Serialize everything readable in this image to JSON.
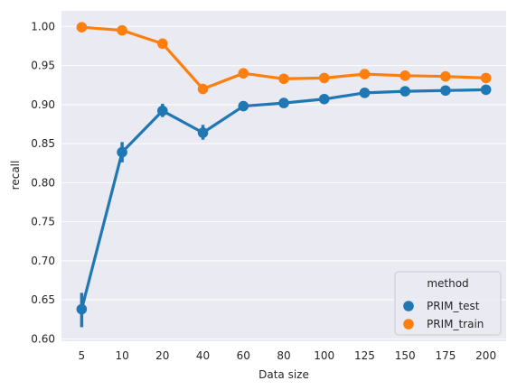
{
  "chart_data": {
    "type": "line",
    "style": "seaborn-darkgrid-pointplot",
    "xlabel": "Data size",
    "ylabel": "recall",
    "categories": [
      "5",
      "10",
      "20",
      "40",
      "60",
      "80",
      "100",
      "125",
      "150",
      "175",
      "200"
    ],
    "ylim": [
      0.597,
      1.02
    ],
    "yticks": [
      "0.60",
      "0.65",
      "0.70",
      "0.75",
      "0.80",
      "0.85",
      "0.90",
      "0.95",
      "1.00"
    ],
    "grid": true,
    "legend": {
      "title": "method",
      "placement": "lower-right"
    },
    "series": [
      {
        "name": "PRIM_test",
        "color": "#1f77b4",
        "values": [
          0.638,
          0.839,
          0.892,
          0.864,
          0.898,
          0.902,
          0.907,
          0.915,
          0.917,
          0.918,
          0.919
        ],
        "err_low": [
          0.615,
          0.826,
          0.884,
          0.855,
          0.894,
          0.899,
          0.903,
          0.912,
          0.915,
          0.917,
          0.918
        ],
        "err_high": [
          0.659,
          0.852,
          0.901,
          0.874,
          0.903,
          0.905,
          0.911,
          0.918,
          0.919,
          0.919,
          0.92
        ]
      },
      {
        "name": "PRIM_train",
        "color": "#ff7f0e",
        "values": [
          0.999,
          0.995,
          0.978,
          0.92,
          0.94,
          0.933,
          0.934,
          0.939,
          0.937,
          0.936,
          0.934
        ],
        "err_low": [
          0.998,
          0.994,
          0.976,
          0.918,
          0.939,
          0.932,
          0.933,
          0.938,
          0.936,
          0.935,
          0.933
        ],
        "err_high": [
          1.0,
          0.996,
          0.98,
          0.922,
          0.941,
          0.934,
          0.935,
          0.94,
          0.938,
          0.937,
          0.935
        ]
      }
    ]
  }
}
